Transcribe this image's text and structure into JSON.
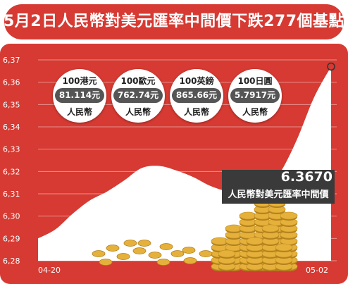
{
  "title": "5月2日人民幣對美元匯率中間價下跌277個基點",
  "conversions": [
    {
      "currency": "100港元",
      "amount": "81.114元",
      "unit": "人民幣"
    },
    {
      "currency": "100歐元",
      "amount": "762.74元",
      "unit": "人民幣"
    },
    {
      "currency": "100英鎊",
      "amount": "865.66元",
      "unit": "人民幣"
    },
    {
      "currency": "100日圓",
      "amount": "5.7917元",
      "unit": "人民幣"
    }
  ],
  "annotation": {
    "value": "6.3670",
    "label": "人民幣對美元匯率中間價"
  },
  "colors": {
    "background": "#d63a32",
    "area": "#ffffff",
    "coin": "#e6b13b"
  },
  "chart_data": {
    "type": "area",
    "x_tick_labels": [
      "04-20",
      "05-02"
    ],
    "y_ticks": [
      "6,28",
      "6,29",
      "6,30",
      "6,31",
      "6,32",
      "6,33",
      "6,34",
      "6,35",
      "6,36",
      "6,37"
    ],
    "ylim": [
      6.28,
      6.37
    ],
    "values": [
      6.29,
      6.294,
      6.301,
      6.307,
      6.311,
      6.316,
      6.3215,
      6.3225,
      6.3205,
      6.3175,
      6.3135,
      6.311,
      6.3095,
      6.3115,
      6.319,
      6.334,
      6.353,
      6.367
    ],
    "series": [
      {
        "name": "人民幣對美元匯率中間價",
        "values": [
          6.29,
          6.294,
          6.301,
          6.307,
          6.311,
          6.316,
          6.3215,
          6.3225,
          6.3205,
          6.3175,
          6.3135,
          6.311,
          6.3095,
          6.3115,
          6.319,
          6.334,
          6.353,
          6.367
        ]
      }
    ],
    "grid": true,
    "annotations": [
      "6.3670"
    ]
  }
}
